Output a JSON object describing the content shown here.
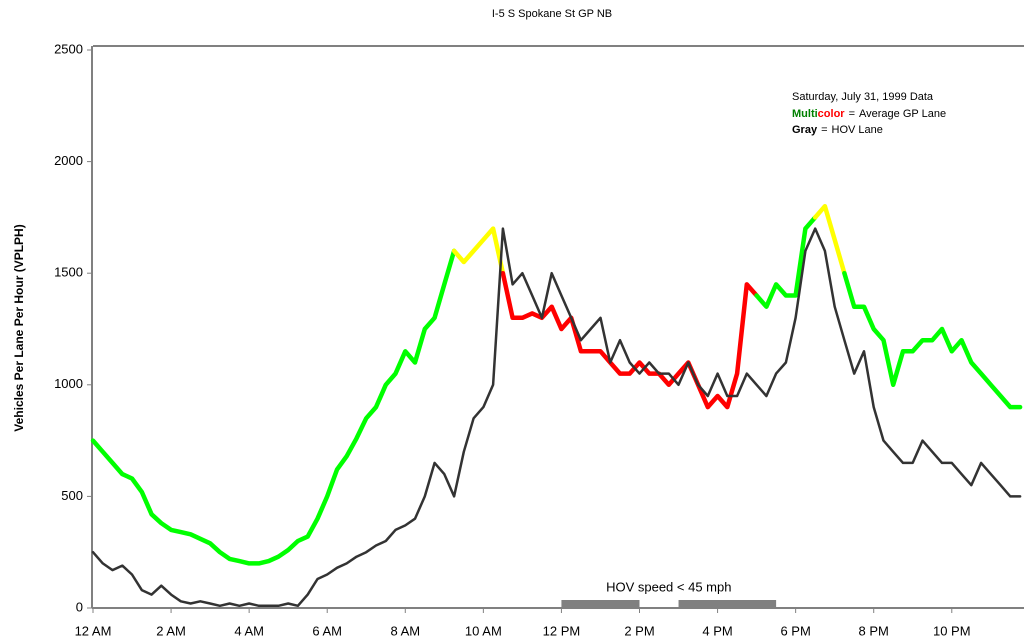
{
  "chart_data": {
    "type": "line",
    "title": "I-5  S Spokane St  GP NB",
    "y_label": "Vehicles Per Lane Per Hour (VPLPH)",
    "legend_title": "Saturday, July 31, 1999 Data",
    "legend_separator": "=",
    "xlim": [
      0,
      23.85
    ],
    "ylim": [
      0,
      2500
    ],
    "yticks": [
      0,
      500,
      1000,
      1500,
      2000,
      2500
    ],
    "xticks": [
      {
        "value": 0,
        "label": "12 AM"
      },
      {
        "value": 2,
        "label": "2 AM"
      },
      {
        "value": 4,
        "label": "4 AM"
      },
      {
        "value": 6,
        "label": "6 AM"
      },
      {
        "value": 8,
        "label": "8 AM"
      },
      {
        "value": 10,
        "label": "10 AM"
      },
      {
        "value": 12,
        "label": "12 PM"
      },
      {
        "value": 14,
        "label": "2 PM"
      },
      {
        "value": 16,
        "label": "4 PM"
      },
      {
        "value": 18,
        "label": "6 PM"
      },
      {
        "value": 20,
        "label": "8 PM"
      },
      {
        "value": 22,
        "label": "10 PM"
      }
    ],
    "x": [
      0,
      0.25,
      0.5,
      0.75,
      1,
      1.25,
      1.5,
      1.75,
      2,
      2.25,
      2.5,
      2.75,
      3,
      3.25,
      3.5,
      3.75,
      4,
      4.25,
      4.5,
      4.75,
      5,
      5.25,
      5.5,
      5.75,
      6,
      6.25,
      6.5,
      6.75,
      7,
      7.25,
      7.5,
      7.75,
      8,
      8.25,
      8.5,
      8.75,
      9,
      9.25,
      9.5,
      9.75,
      10,
      10.25,
      10.5,
      10.75,
      11,
      11.25,
      11.5,
      11.75,
      12,
      12.25,
      12.5,
      12.75,
      13,
      13.25,
      13.5,
      13.75,
      14,
      14.25,
      14.5,
      14.75,
      15,
      15.25,
      15.5,
      15.75,
      16,
      16.25,
      16.5,
      16.75,
      17,
      17.25,
      17.5,
      17.75,
      18,
      18.25,
      18.5,
      18.75,
      19,
      19.25,
      19.5,
      19.75,
      20,
      20.25,
      20.5,
      20.75,
      21,
      21.25,
      21.5,
      21.75,
      22,
      22.25,
      22.5,
      22.75,
      23,
      23.25,
      23.5,
      23.75
    ],
    "series": [
      {
        "name": "Average GP Lane",
        "legend_key": [
          "Multi",
          "color"
        ],
        "legend_key_colors": [
          "#008000",
          "#ff0000"
        ],
        "width": 4.5,
        "values": [
          750,
          700,
          650,
          600,
          580,
          520,
          420,
          380,
          350,
          340,
          330,
          310,
          290,
          250,
          220,
          210,
          200,
          200,
          210,
          230,
          260,
          300,
          320,
          400,
          500,
          620,
          680,
          760,
          850,
          900,
          1000,
          1050,
          1150,
          1100,
          1250,
          1300,
          1450,
          1600,
          1550,
          1600,
          1650,
          1700,
          1500,
          1300,
          1300,
          1320,
          1300,
          1350,
          1250,
          1300,
          1150,
          1150,
          1150,
          1100,
          1050,
          1050,
          1100,
          1050,
          1050,
          1000,
          1050,
          1100,
          1000,
          900,
          950,
          900,
          1050,
          1450,
          1400,
          1350,
          1450,
          1400,
          1400,
          1700,
          1750,
          1800,
          1650,
          1500,
          1350,
          1350,
          1250,
          1200,
          1000,
          1150,
          1150,
          1200,
          1200,
          1250,
          1150,
          1200,
          1100,
          1050,
          1000,
          950,
          900,
          900
        ],
        "colors": [
          "#00ff00",
          "#00ff00",
          "#00ff00",
          "#00ff00",
          "#00ff00",
          "#00ff00",
          "#00ff00",
          "#00ff00",
          "#00ff00",
          "#00ff00",
          "#00ff00",
          "#00ff00",
          "#00ff00",
          "#00ff00",
          "#00ff00",
          "#00ff00",
          "#00ff00",
          "#00ff00",
          "#00ff00",
          "#00ff00",
          "#00ff00",
          "#00ff00",
          "#00ff00",
          "#00ff00",
          "#00ff00",
          "#00ff00",
          "#00ff00",
          "#00ff00",
          "#00ff00",
          "#00ff00",
          "#00ff00",
          "#00ff00",
          "#00ff00",
          "#00ff00",
          "#00ff00",
          "#00ff00",
          "#00ff00",
          "#ffff00",
          "#ffff00",
          "#ffff00",
          "#ffff00",
          "#ffff00",
          "#ff0000",
          "#ff0000",
          "#ff0000",
          "#ff0000",
          "#ff0000",
          "#ff0000",
          "#ff0000",
          "#ff0000",
          "#ff0000",
          "#ff0000",
          "#ff0000",
          "#ff0000",
          "#ff0000",
          "#ff0000",
          "#ff0000",
          "#ff0000",
          "#ff0000",
          "#ff0000",
          "#ff0000",
          "#ff0000",
          "#ff0000",
          "#ff0000",
          "#ff0000",
          "#ff0000",
          "#ff0000",
          "#ff0000",
          "#00ff00",
          "#00ff00",
          "#00ff00",
          "#00ff00",
          "#00ff00",
          "#00ff00",
          "#ffff00",
          "#ffff00",
          "#ffff00",
          "#00ff00",
          "#00ff00",
          "#00ff00",
          "#00ff00",
          "#00ff00",
          "#00ff00",
          "#00ff00",
          "#00ff00",
          "#00ff00",
          "#00ff00",
          "#00ff00",
          "#00ff00",
          "#00ff00",
          "#00ff00",
          "#00ff00",
          "#00ff00",
          "#00ff00",
          "#00ff00",
          "#00ff00"
        ]
      },
      {
        "name": "HOV Lane",
        "legend_key": [
          "Gray"
        ],
        "legend_key_colors": [
          "#000000"
        ],
        "width": 2.5,
        "color": "#333333",
        "values": [
          250,
          200,
          170,
          190,
          150,
          80,
          60,
          100,
          60,
          30,
          20,
          30,
          20,
          10,
          20,
          10,
          20,
          10,
          10,
          10,
          20,
          10,
          60,
          130,
          150,
          180,
          200,
          230,
          250,
          280,
          300,
          350,
          370,
          400,
          500,
          650,
          600,
          500,
          700,
          850,
          900,
          1000,
          1700,
          1450,
          1500,
          1400,
          1300,
          1500,
          1400,
          1300,
          1200,
          1250,
          1300,
          1100,
          1200,
          1100,
          1050,
          1100,
          1050,
          1050,
          1000,
          1100,
          1000,
          950,
          1050,
          950,
          950,
          1050,
          1000,
          950,
          1050,
          1100,
          1300,
          1600,
          1700,
          1600,
          1350,
          1200,
          1050,
          1150,
          900,
          750,
          700,
          650,
          650,
          750,
          700,
          650,
          650,
          600,
          550,
          650,
          600,
          550,
          500,
          500
        ]
      }
    ],
    "hov_slow": {
      "label": "HOV speed < 45 mph",
      "color": "#808080",
      "periods": [
        [
          12,
          14
        ],
        [
          15,
          17.5
        ]
      ]
    }
  }
}
